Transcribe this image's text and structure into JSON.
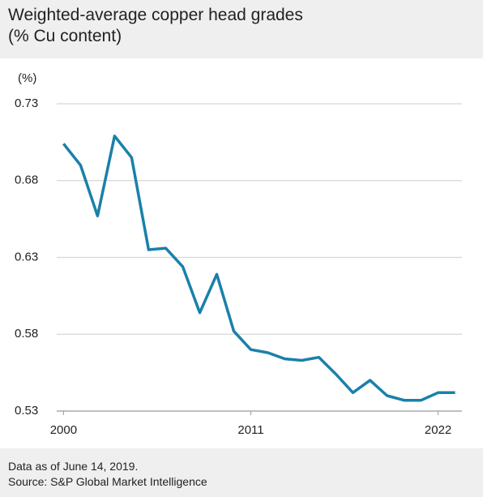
{
  "chart_data": {
    "type": "line",
    "title": "Weighted-average copper head grades",
    "subtitle": "(% Cu content)",
    "y_label": "(%)",
    "note": "Data as of June 14, 2019.",
    "source": "Source: S&P Global Market Intelligence",
    "x": [
      2000,
      2001,
      2002,
      2003,
      2004,
      2005,
      2006,
      2007,
      2008,
      2009,
      2010,
      2011,
      2012,
      2013,
      2014,
      2015,
      2016,
      2017,
      2018,
      2019,
      2020,
      2021,
      2022,
      2023
    ],
    "series": [
      {
        "name": "Copper head grade",
        "color": "#1a80aa",
        "values": [
          0.704,
          0.69,
          0.657,
          0.709,
          0.695,
          0.635,
          0.636,
          0.624,
          0.594,
          0.619,
          0.582,
          0.57,
          0.568,
          0.564,
          0.563,
          0.565,
          0.554,
          0.542,
          0.55,
          0.54,
          0.537,
          0.537,
          0.542,
          0.542
        ]
      }
    ],
    "xlim": [
      1999.6,
      2023.4
    ],
    "xticks": [
      2000,
      2011,
      2022
    ],
    "ylim": [
      0.53,
      0.73
    ],
    "yticks": [
      0.73,
      0.68,
      0.63,
      0.58,
      0.53
    ],
    "grid": true
  }
}
